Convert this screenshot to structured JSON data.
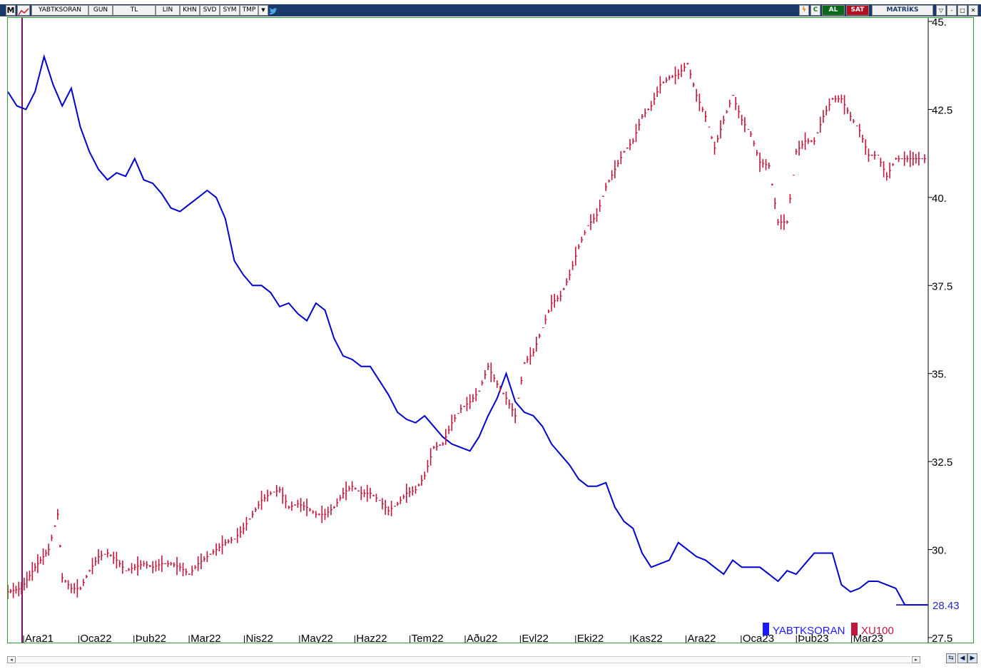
{
  "toolbar": {
    "menu_icon": "M",
    "symbol": "YABTKSORAN",
    "period": "GUN",
    "currency": "TL",
    "scale": "LIN",
    "buttons": [
      "KHN",
      "SVD",
      "SYM",
      "TMP"
    ],
    "dropdown_icon": "chevron-down-icon",
    "twitter_icon": "twitter-icon",
    "lightning_icon": "lightning-icon",
    "refresh_label": "C",
    "buy_label": "AL",
    "sell_label": "SAT",
    "brand": "MATRİKS",
    "window_buttons": [
      "▽",
      "-",
      "□",
      "✕"
    ]
  },
  "chart": {
    "y_ticks": [
      "45.",
      "42.5",
      "40.",
      "37.5",
      "35.",
      "32.5",
      "30.",
      "27.5"
    ],
    "x_ticks": [
      "Ara21",
      "Oca22",
      "Þub22",
      "Mar22",
      "Nis22",
      "May22",
      "Haz22",
      "Tem22",
      "Aðu22",
      "Evl22",
      "Eki22",
      "Kas22",
      "Ara22",
      "Oca23",
      "Þub23",
      "Mar23"
    ],
    "last_value_label": "28.43",
    "colors": {
      "blue": "#0000cc",
      "red": "#c0173c",
      "grid_border": "#2e9e2e",
      "cursor": "#7a1060"
    }
  },
  "legend": [
    {
      "name": "YABTKSORAN",
      "color": "#1a1aff"
    },
    {
      "name": "XU100",
      "color": "#c0173c"
    }
  ],
  "chart_data": {
    "type": "line",
    "y_ticks": [
      45,
      42.5,
      40,
      37.5,
      35,
      32.5,
      30,
      27.5
    ],
    "ylim": [
      27.5,
      45
    ],
    "series": [
      {
        "name": "YABTKSORAN",
        "points": [
          [
            0,
            43
          ],
          [
            2,
            42.6
          ],
          [
            4,
            42.5
          ],
          [
            6,
            43
          ],
          [
            8,
            44
          ],
          [
            10,
            43.2
          ],
          [
            12,
            42.6
          ],
          [
            14,
            43.1
          ],
          [
            16,
            42
          ],
          [
            18,
            41.3
          ],
          [
            20,
            40.8
          ],
          [
            22,
            40.5
          ],
          [
            24,
            40.7
          ],
          [
            26,
            40.6
          ],
          [
            28,
            41.1
          ],
          [
            30,
            40.5
          ],
          [
            32,
            40.4
          ],
          [
            34,
            40.1
          ],
          [
            36,
            39.7
          ],
          [
            38,
            39.6
          ],
          [
            40,
            39.8
          ],
          [
            42,
            40
          ],
          [
            44,
            40.2
          ],
          [
            46,
            40
          ],
          [
            48,
            39.4
          ],
          [
            50,
            38.2
          ],
          [
            52,
            37.8
          ],
          [
            54,
            37.5
          ],
          [
            56,
            37.5
          ],
          [
            58,
            37.3
          ],
          [
            60,
            36.9
          ],
          [
            62,
            37
          ],
          [
            64,
            36.7
          ],
          [
            66,
            36.5
          ],
          [
            68,
            37
          ],
          [
            70,
            36.8
          ],
          [
            72,
            36
          ],
          [
            74,
            35.5
          ],
          [
            76,
            35.4
          ],
          [
            78,
            35.2
          ],
          [
            80,
            35.2
          ],
          [
            82,
            34.8
          ],
          [
            84,
            34.4
          ],
          [
            86,
            33.9
          ],
          [
            88,
            33.7
          ],
          [
            90,
            33.6
          ],
          [
            92,
            33.8
          ],
          [
            94,
            33.5
          ],
          [
            96,
            33.2
          ],
          [
            98,
            33
          ],
          [
            100,
            32.9
          ],
          [
            102,
            32.8
          ],
          [
            104,
            33.2
          ],
          [
            106,
            33.8
          ],
          [
            108,
            34.3
          ],
          [
            110,
            35
          ],
          [
            112,
            34.2
          ],
          [
            114,
            33.9
          ],
          [
            116,
            33.8
          ],
          [
            118,
            33.5
          ],
          [
            120,
            33
          ],
          [
            122,
            32.7
          ],
          [
            124,
            32.4
          ],
          [
            126,
            32
          ],
          [
            128,
            31.8
          ],
          [
            130,
            31.8
          ],
          [
            132,
            31.9
          ],
          [
            134,
            31.2
          ],
          [
            136,
            30.8
          ],
          [
            138,
            30.6
          ],
          [
            140,
            29.9
          ],
          [
            142,
            29.5
          ],
          [
            144,
            29.6
          ],
          [
            146,
            29.7
          ],
          [
            148,
            30.2
          ],
          [
            150,
            30
          ],
          [
            152,
            29.8
          ],
          [
            154,
            29.7
          ],
          [
            156,
            29.5
          ],
          [
            158,
            29.3
          ],
          [
            160,
            29.7
          ],
          [
            162,
            29.5
          ],
          [
            164,
            29.5
          ],
          [
            166,
            29.5
          ],
          [
            168,
            29.3
          ],
          [
            170,
            29.1
          ],
          [
            172,
            29.4
          ],
          [
            174,
            29.3
          ],
          [
            176,
            29.6
          ],
          [
            178,
            29.9
          ],
          [
            180,
            29.9
          ],
          [
            182,
            29.9
          ],
          [
            184,
            29
          ],
          [
            186,
            28.8
          ],
          [
            188,
            28.9
          ],
          [
            190,
            29.1
          ],
          [
            192,
            29.1
          ],
          [
            194,
            29
          ],
          [
            196,
            28.9
          ],
          [
            198,
            28.43
          ],
          [
            203,
            28.43
          ]
        ]
      },
      {
        "name": "XU100",
        "points": [
          [
            0,
            28.8
          ],
          [
            3,
            28.9
          ],
          [
            6,
            29.5
          ],
          [
            9,
            30
          ],
          [
            11,
            31
          ],
          [
            12,
            29.2
          ],
          [
            14,
            28.9
          ],
          [
            16,
            28.9
          ],
          [
            18,
            29.4
          ],
          [
            20,
            29.8
          ],
          [
            22,
            29.9
          ],
          [
            24,
            29.7
          ],
          [
            26,
            29.4
          ],
          [
            28,
            29.5
          ],
          [
            30,
            29.6
          ],
          [
            32,
            29.5
          ],
          [
            34,
            29.6
          ],
          [
            36,
            29.6
          ],
          [
            38,
            29.5
          ],
          [
            40,
            29.3
          ],
          [
            42,
            29.6
          ],
          [
            44,
            29.8
          ],
          [
            46,
            30
          ],
          [
            48,
            30.2
          ],
          [
            50,
            30.3
          ],
          [
            52,
            30.6
          ],
          [
            54,
            31
          ],
          [
            56,
            31.4
          ],
          [
            58,
            31.6
          ],
          [
            60,
            31.7
          ],
          [
            62,
            31.2
          ],
          [
            64,
            31.3
          ],
          [
            66,
            31.2
          ],
          [
            68,
            31
          ],
          [
            70,
            31
          ],
          [
            72,
            31.2
          ],
          [
            74,
            31.6
          ],
          [
            76,
            31.8
          ],
          [
            78,
            31.6
          ],
          [
            80,
            31.6
          ],
          [
            82,
            31.4
          ],
          [
            84,
            31.1
          ],
          [
            86,
            31.3
          ],
          [
            88,
            31.6
          ],
          [
            90,
            31.7
          ],
          [
            92,
            32.1
          ],
          [
            94,
            32.9
          ],
          [
            96,
            33
          ],
          [
            98,
            33.6
          ],
          [
            100,
            34
          ],
          [
            102,
            34.2
          ],
          [
            104,
            34.5
          ],
          [
            106,
            35.2
          ],
          [
            108,
            34.7
          ],
          [
            110,
            34.3
          ],
          [
            112,
            33.8
          ],
          [
            114,
            35.3
          ],
          [
            116,
            35.6
          ],
          [
            118,
            36.3
          ],
          [
            120,
            37
          ],
          [
            122,
            37.2
          ],
          [
            124,
            37.8
          ],
          [
            126,
            38.6
          ],
          [
            128,
            39.2
          ],
          [
            130,
            39.5
          ],
          [
            132,
            40.3
          ],
          [
            134,
            40.8
          ],
          [
            136,
            41.3
          ],
          [
            138,
            41.6
          ],
          [
            140,
            42.3
          ],
          [
            142,
            42.6
          ],
          [
            144,
            43.2
          ],
          [
            146,
            43.4
          ],
          [
            148,
            43.5
          ],
          [
            150,
            43.8
          ],
          [
            152,
            42.9
          ],
          [
            154,
            42.3
          ],
          [
            156,
            41.4
          ],
          [
            158,
            42.2
          ],
          [
            160,
            42.9
          ],
          [
            162,
            42.2
          ],
          [
            164,
            41.8
          ],
          [
            166,
            41
          ],
          [
            168,
            40.9
          ],
          [
            170,
            39.3
          ],
          [
            172,
            39.3
          ],
          [
            174,
            41.3
          ],
          [
            176,
            41.6
          ],
          [
            178,
            41.6
          ],
          [
            180,
            42.3
          ],
          [
            182,
            42.8
          ],
          [
            184,
            42.8
          ],
          [
            186,
            42.3
          ],
          [
            188,
            41.9
          ],
          [
            190,
            41.2
          ],
          [
            192,
            41.2
          ],
          [
            194,
            40.6
          ],
          [
            196,
            41.1
          ],
          [
            203,
            41.1
          ]
        ]
      }
    ]
  }
}
